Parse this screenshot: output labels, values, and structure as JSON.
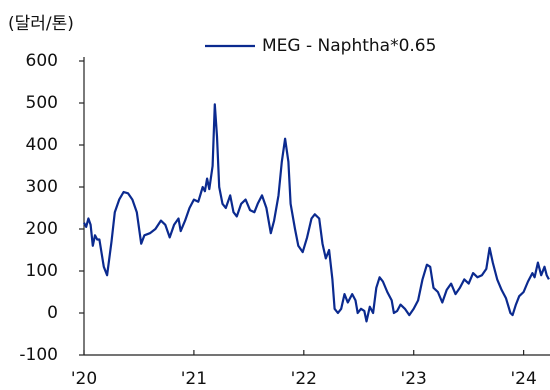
{
  "chart_data": {
    "type": "line",
    "y_label": "(달러/톤)",
    "x": [
      2020.0,
      2020.02,
      2020.04,
      2020.06,
      2020.08,
      2020.1,
      2020.12,
      2020.14,
      2020.18,
      2020.21,
      2020.25,
      2020.28,
      2020.32,
      2020.36,
      2020.4,
      2020.44,
      2020.48,
      2020.52,
      2020.55,
      2020.6,
      2020.65,
      2020.7,
      2020.74,
      2020.78,
      2020.82,
      2020.86,
      2020.88,
      2020.92,
      2020.96,
      2021.0,
      2021.04,
      2021.08,
      2021.1,
      2021.12,
      2021.14,
      2021.17,
      2021.19,
      2021.21,
      2021.23,
      2021.26,
      2021.29,
      2021.33,
      2021.36,
      2021.39,
      2021.43,
      2021.47,
      2021.51,
      2021.55,
      2021.58,
      2021.62,
      2021.66,
      2021.7,
      2021.73,
      2021.77,
      2021.8,
      2021.83,
      2021.86,
      2021.88,
      2021.92,
      2021.95,
      2021.99,
      2022.03,
      2022.07,
      2022.1,
      2022.14,
      2022.17,
      2022.2,
      2022.23,
      2022.26,
      2022.28,
      2022.31,
      2022.34,
      2022.37,
      2022.4,
      2022.44,
      2022.47,
      2022.49,
      2022.52,
      2022.55,
      2022.57,
      2022.6,
      2022.63,
      2022.66,
      2022.69,
      2022.72,
      2022.76,
      2022.8,
      2022.82,
      2022.85,
      2022.88,
      2022.92,
      2022.96,
      2023.0,
      2023.04,
      2023.08,
      2023.12,
      2023.15,
      2023.18,
      2023.22,
      2023.26,
      2023.3,
      2023.34,
      2023.38,
      2023.42,
      2023.46,
      2023.5,
      2023.54,
      2023.58,
      2023.62,
      2023.66,
      2023.69,
      2023.72,
      2023.76,
      2023.8,
      2023.84,
      2023.88,
      2023.9,
      2023.93,
      2023.96,
      2024.0,
      2024.04,
      2024.08,
      2024.1,
      2024.13,
      2024.16,
      2024.19,
      2024.21,
      2024.23
    ],
    "series": [
      {
        "name": "MEG - Naphtha*0.65",
        "color": "#0b2a8f",
        "values": [
          215,
          205,
          225,
          210,
          160,
          185,
          175,
          175,
          110,
          90,
          170,
          240,
          270,
          288,
          285,
          270,
          240,
          165,
          185,
          190,
          200,
          220,
          210,
          180,
          210,
          225,
          195,
          220,
          250,
          270,
          265,
          300,
          290,
          320,
          295,
          350,
          497,
          420,
          300,
          260,
          250,
          280,
          240,
          230,
          260,
          270,
          245,
          240,
          260,
          280,
          250,
          190,
          220,
          280,
          360,
          415,
          360,
          260,
          200,
          160,
          145,
          180,
          225,
          235,
          225,
          165,
          130,
          150,
          80,
          10,
          0,
          10,
          45,
          25,
          45,
          30,
          0,
          10,
          5,
          -20,
          15,
          0,
          60,
          85,
          75,
          50,
          30,
          0,
          5,
          20,
          10,
          -5,
          10,
          30,
          80,
          115,
          110,
          60,
          50,
          25,
          55,
          70,
          45,
          60,
          80,
          70,
          95,
          85,
          90,
          105,
          155,
          120,
          80,
          55,
          35,
          0,
          -5,
          20,
          40,
          50,
          75,
          95,
          85,
          120,
          90,
          110,
          90,
          80
        ]
      }
    ],
    "xlim": [
      2020,
      2024.24
    ],
    "xticks": [
      {
        "value": 2020,
        "label": "'20"
      },
      {
        "value": 2021,
        "label": "'21"
      },
      {
        "value": 2022,
        "label": "'22"
      },
      {
        "value": 2023,
        "label": "'23"
      },
      {
        "value": 2024,
        "label": "'24"
      }
    ],
    "ylim": [
      -100,
      600
    ],
    "yticks": [
      -100,
      0,
      100,
      200,
      300,
      400,
      500,
      600
    ],
    "grid": false
  }
}
